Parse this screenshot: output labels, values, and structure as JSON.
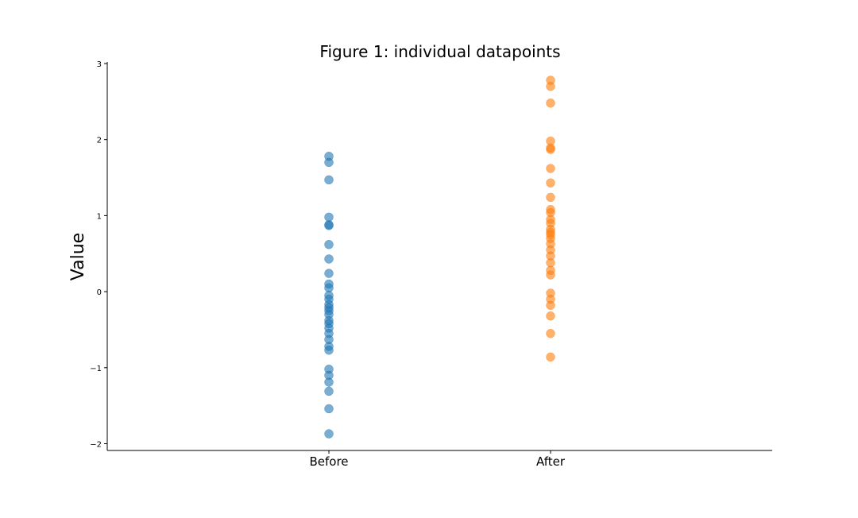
{
  "chart_data": {
    "type": "scatter",
    "title": "Figure 1: individual datapoints",
    "xlabel": "",
    "ylabel": "Value",
    "categories": [
      "Before",
      "After"
    ],
    "ylim": [
      -2.1,
      3.0
    ],
    "yticks": [
      -2,
      -1,
      0,
      1,
      2,
      3
    ],
    "ytick_labels": [
      "−2",
      "−1",
      "0",
      "1",
      "2",
      "3"
    ],
    "grid": false,
    "legend": "none",
    "series": [
      {
        "color": "#1f77b4",
        "category": "Before",
        "values": [
          1.78,
          1.7,
          1.47,
          0.98,
          0.88,
          0.87,
          0.62,
          0.43,
          0.24,
          0.1,
          0.05,
          -0.05,
          -0.1,
          -0.17,
          -0.21,
          -0.25,
          -0.3,
          -0.38,
          -0.42,
          -0.48,
          -0.55,
          -0.63,
          -0.72,
          -0.77,
          -1.02,
          -1.1,
          -1.19,
          -1.31,
          -1.54,
          -1.87
        ]
      },
      {
        "color": "#ff7f0e",
        "category": "After",
        "values": [
          2.78,
          2.7,
          2.48,
          1.98,
          1.89,
          1.87,
          1.62,
          1.43,
          1.24,
          1.08,
          1.04,
          0.95,
          0.9,
          0.82,
          0.78,
          0.75,
          0.7,
          0.63,
          0.55,
          0.47,
          0.38,
          0.28,
          0.22,
          -0.02,
          -0.1,
          -0.18,
          -0.32,
          -0.55,
          -0.86
        ]
      }
    ]
  }
}
